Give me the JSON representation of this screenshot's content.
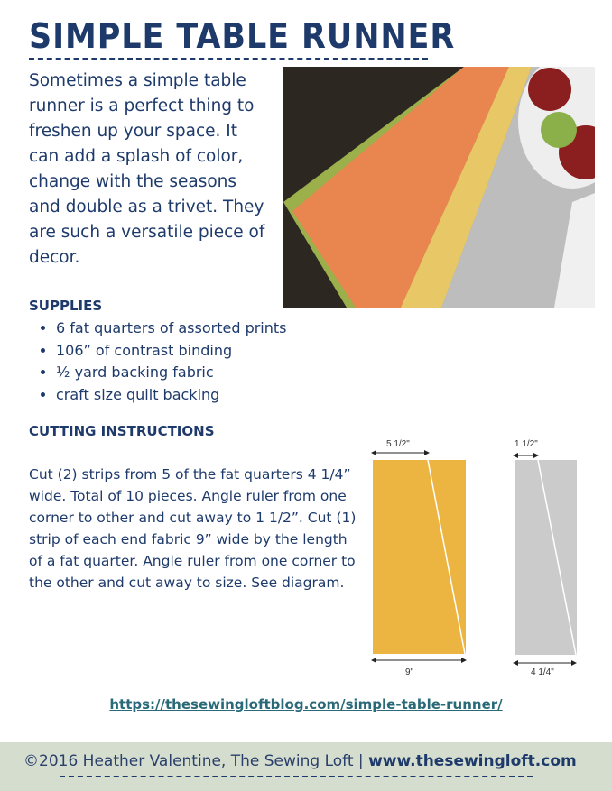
{
  "title": "SIMPLE TABLE RUNNER",
  "intro": "Sometimes a simple table runner is a perfect thing to freshen up your space. It can add a splash of color, change with the seasons and double as a trivet. They are such a versatile piece of decor.",
  "supplies": {
    "heading": "SUPPLIES",
    "items": [
      "6 fat quarters of assorted prints",
      "106” of contrast binding",
      "½ yard backing fabric",
      "craft size quilt backing"
    ]
  },
  "cutting": {
    "heading": "CUTTING INSTRUCTIONS",
    "text": "Cut (2) strips from 5 of the fat quarters 4 1/4” wide. Total of 10 pieces. Angle ruler from one corner to other and cut away to 1 1/2”.   Cut (1) strip of each end fabric 9” wide by the length of a fat quarter. Angle ruler from one corner to the other and cut away to size. See diagram."
  },
  "diagram": {
    "left": {
      "top": "5 1/2\"",
      "bottom": "9\"",
      "color": "#ecb440"
    },
    "right": {
      "top": "1 1/2\"",
      "bottom": "4 1/4\"",
      "color": "#cbcbcb"
    }
  },
  "link": " https://thesewingloftblog.com/simple-table-runner/",
  "footer": {
    "copyright": "©2016 Heather Valentine, The Sewing Loft",
    "separator": " | ",
    "site": "www.thesewingloft.com"
  }
}
